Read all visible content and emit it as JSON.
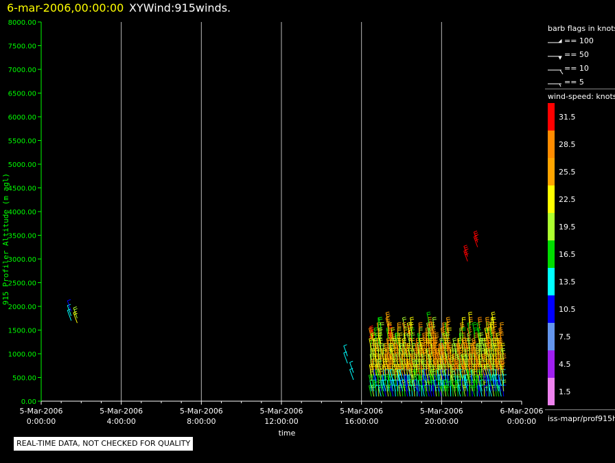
{
  "header": {
    "date_label": "6-mar-2006,00:00:00",
    "plot_name": "XYWind:915winds."
  },
  "qc_note": "REAL-TIME DATA, NOT CHECKED FOR QUALITY",
  "source_label": "iss-mapr/prof915h",
  "barb_legend": {
    "title": "barb flags in knots",
    "items": [
      {
        "label": "== 100"
      },
      {
        "label": "== 50"
      },
      {
        "label": "== 10"
      },
      {
        "label": "== 5"
      }
    ]
  },
  "colorbar": {
    "title": "wind-speed: knots",
    "levels": [
      {
        "label": "31.5",
        "color": "#ff0000"
      },
      {
        "label": "28.5",
        "color": "#ff8c00"
      },
      {
        "label": "25.5",
        "color": "#ffa500"
      },
      {
        "label": "22.5",
        "color": "#ffff00"
      },
      {
        "label": "19.5",
        "color": "#adff2f"
      },
      {
        "label": "16.5",
        "color": "#00dd00"
      },
      {
        "label": "13.5",
        "color": "#00ffff"
      },
      {
        "label": "10.5",
        "color": "#0000ff"
      },
      {
        "label": "7.5",
        "color": "#6495ed"
      },
      {
        "label": "4.5",
        "color": "#a020f0"
      },
      {
        "label": "1.5",
        "color": "#ee82ee"
      }
    ]
  },
  "chart_data": {
    "type": "scatter",
    "title": "",
    "xlabel": "time",
    "ylabel": "915 Profiler Altitude (m agl)",
    "ylim": [
      0,
      8000
    ],
    "xlim_hours": [
      0,
      24
    ],
    "yticks": [
      "0.00",
      "500.00",
      "1000.00",
      "1500.00",
      "2000.00",
      "2500.00",
      "3000.00",
      "3500.00",
      "4000.00",
      "4500.00",
      "5000.00",
      "5500.00",
      "6000.00",
      "6500.00",
      "7000.00",
      "7500.00",
      "8000.00"
    ],
    "xticks": [
      {
        "date": "5-Mar-2006",
        "time": "0:00:00"
      },
      {
        "date": "5-Mar-2006",
        "time": "4:00:00"
      },
      {
        "date": "5-Mar-2006",
        "time": "8:00:00"
      },
      {
        "date": "5-Mar-2006",
        "time": "12:00:00"
      },
      {
        "date": "5-Mar-2006",
        "time": "16:00:00"
      },
      {
        "date": "5-Mar-2006",
        "time": "20:00:00"
      },
      {
        "date": "6-Mar-2006",
        "time": "0:00:00"
      }
    ],
    "grid": true,
    "colors": {
      "axis": "#00ff00",
      "grid": "#bbbbbb"
    },
    "profiles": [
      {
        "time_h": 1.5,
        "color": "#00ffff",
        "points": [
          [
            1700,
            13.5
          ],
          [
            1800,
            13.5
          ],
          [
            1900,
            10.5
          ]
        ]
      },
      {
        "time_h": 1.8,
        "color": "#ffff00",
        "points": [
          [
            1650,
            22.5
          ],
          [
            1750,
            19.5
          ]
        ]
      },
      {
        "time_h": 15.3,
        "color": "#00ffff",
        "points": [
          [
            800,
            13.5
          ],
          [
            950,
            13.5
          ]
        ]
      },
      {
        "time_h": 15.6,
        "color": "#00ffff",
        "points": [
          [
            450,
            13.5
          ],
          [
            600,
            13.5
          ]
        ]
      },
      {
        "time_h": 16.6,
        "color": "#ff0000",
        "points": [
          [
            1150,
            31.5
          ],
          [
            1250,
            31.5
          ],
          [
            1350,
            31.5
          ]
        ]
      },
      {
        "time_h": 17.5,
        "color": "#ff0000",
        "points": [
          [
            1200,
            31.5
          ],
          [
            1300,
            31.5
          ],
          [
            1400,
            31.5
          ]
        ]
      },
      {
        "time_h": 18.5,
        "color": "#ff0000",
        "points": [
          [
            1250,
            31.5
          ],
          [
            1350,
            31.5
          ]
        ]
      },
      {
        "time_h": 21.3,
        "color": "#ff0000",
        "points": [
          [
            2950,
            31.5
          ],
          [
            3050,
            31.5
          ]
        ]
      },
      {
        "time_h": 21.8,
        "color": "#ff0000",
        "points": [
          [
            3250,
            31.5
          ],
          [
            3350,
            31.5
          ]
        ]
      }
    ],
    "dense_region": {
      "start_h": 16.5,
      "end_h": 23.2,
      "alt_min": 100,
      "alt_max": 1700
    }
  }
}
